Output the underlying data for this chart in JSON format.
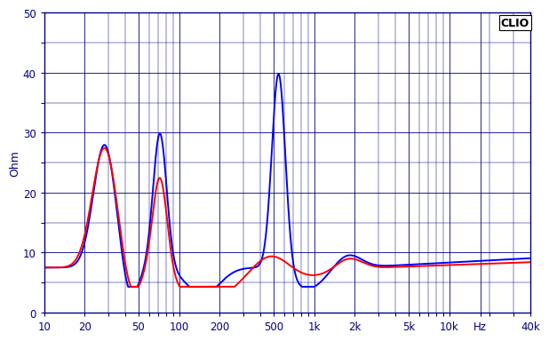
{
  "title": "CLIO",
  "ylabel": "Ohm",
  "ylim": [
    0,
    50
  ],
  "xlim": [
    10,
    40000
  ],
  "yticks": [
    0,
    10,
    20,
    30,
    40,
    50
  ],
  "background_color": "#ffffff",
  "grid_color": "#000080",
  "line_blue": "#0000ff",
  "line_red": "#ff0000",
  "linewidth": 1.4
}
